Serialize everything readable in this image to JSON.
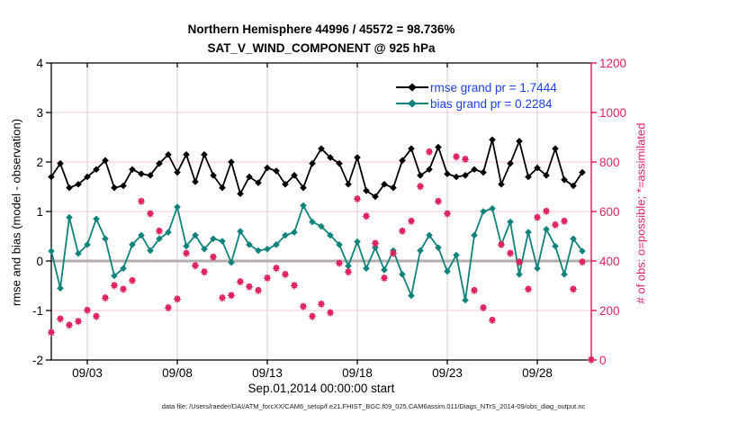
{
  "title": {
    "line1": "Northern Hemisphere 44996 / 45572 = 98.736%",
    "line2": "SAT_V_WIND_COMPONENT @ 925 hPa"
  },
  "axes": {
    "left": {
      "label": "rmse and bias (model - observation)",
      "range": [
        -2,
        4
      ],
      "ticks": [
        -2,
        -1,
        0,
        1,
        2,
        3,
        4
      ]
    },
    "right": {
      "label": "# of obs: o=possible; *=assimilated",
      "range": [
        0,
        1200
      ],
      "ticks": [
        0,
        200,
        400,
        600,
        800,
        1000,
        1200
      ]
    },
    "x": {
      "label": "Sep.01,2014 00:00:00 start",
      "range_days": [
        0,
        30
      ],
      "tick_days": [
        2,
        7,
        12,
        17,
        22,
        27
      ],
      "tick_labels": [
        "09/03",
        "09/08",
        "09/13",
        "09/18",
        "09/23",
        "09/28"
      ]
    }
  },
  "legend": [
    {
      "label": "rmse grand pr = 1.7444",
      "series": "rmse"
    },
    {
      "label": "bias grand pr = 0.2284",
      "series": "bias"
    }
  ],
  "footer": "data file: /Users/raeder/DAI/ATM_forcXX/CAM6_setup/f.e21.FHIST_BGC.f09_025.CAM6assim.011/Diags_NTrS_2014-09/obs_diag_output.nc",
  "colors": {
    "rmse": "#000000",
    "bias": "#0e837c",
    "obs": "#e0235f",
    "legend_text": "#1e40e6",
    "zero_line": "#b5adad",
    "grid_vertical": "#cccccc",
    "grid_horizontal": "#f2c9d6",
    "axis_black": "#000000"
  },
  "chart_data": {
    "type": "line",
    "title": "Northern Hemisphere 44996 / 45572 = 98.736% | SAT_V_WIND_COMPONENT @ 925 hPa",
    "xlabel": "Sep.01,2014 00:00:00 start",
    "ylabel_left": "rmse and bias (model - observation)",
    "ylabel_right": "# of obs: o=possible; *=assimilated",
    "x_unit": "days since Sep 1 2014 00:00",
    "xlim": [
      0,
      30
    ],
    "ylim_left": [
      -2,
      4
    ],
    "ylim_right": [
      0,
      1200
    ],
    "grid": true,
    "legend_position": "top-right-inside",
    "series": [
      {
        "name": "rmse",
        "axis": "left",
        "grand_pr": 1.7444,
        "marker": "diamond",
        "step_days": 0.5,
        "values": [
          1.7,
          1.97,
          1.48,
          1.55,
          1.7,
          1.85,
          2.03,
          1.48,
          1.52,
          1.85,
          1.76,
          1.73,
          1.97,
          2.15,
          1.79,
          2.15,
          1.6,
          2.15,
          1.73,
          1.48,
          2.0,
          1.36,
          1.7,
          1.58,
          1.88,
          1.82,
          1.55,
          1.73,
          1.48,
          1.97,
          2.27,
          2.09,
          1.97,
          1.55,
          2.09,
          1.42,
          1.3,
          1.55,
          1.48,
          2.03,
          2.27,
          1.73,
          1.85,
          2.3,
          1.76,
          1.7,
          1.73,
          1.85,
          1.79,
          2.45,
          1.55,
          1.97,
          2.42,
          1.7,
          1.88,
          1.73,
          2.27,
          1.64,
          1.52,
          1.79
        ]
      },
      {
        "name": "bias",
        "axis": "left",
        "grand_pr": 0.2284,
        "marker": "diamond",
        "step_days": 0.5,
        "values": [
          0.2,
          -0.55,
          0.88,
          0.15,
          0.33,
          0.85,
          0.45,
          -0.3,
          -0.15,
          0.33,
          0.52,
          0.21,
          0.45,
          0.58,
          1.09,
          0.3,
          0.52,
          0.24,
          0.45,
          0.4,
          -0.03,
          0.6,
          0.33,
          0.21,
          0.24,
          0.33,
          0.52,
          0.58,
          1.12,
          0.79,
          0.7,
          0.52,
          0.33,
          -0.1,
          0.39,
          -0.15,
          0.27,
          -0.18,
          0.21,
          -0.27,
          -0.7,
          0.21,
          0.52,
          0.27,
          -0.21,
          0.12,
          -0.79,
          0.52,
          1.0,
          1.06,
          0.33,
          0.79,
          -0.27,
          0.58,
          -0.15,
          0.64,
          0.3,
          -0.27,
          0.45,
          0.2
        ]
      },
      {
        "name": "num_obs (o=possible, *=assimilated, overlapping)",
        "axis": "right",
        "marker": "asterisk-in-circle",
        "step_days": 0.5,
        "values": [
          110,
          165,
          140,
          155,
          200,
          175,
          250,
          300,
          285,
          320,
          640,
          590,
          520,
          210,
          245,
          430,
          380,
          355,
          415,
          250,
          260,
          315,
          295,
          280,
          330,
          370,
          345,
          300,
          215,
          175,
          225,
          190,
          390,
          355,
          650,
          580,
          470,
          330,
          430,
          520,
          560,
          700,
          840,
          640,
          590,
          820,
          810,
          280,
          210,
          160,
          465,
          430,
          395,
          285,
          575,
          600,
          545,
          560,
          285,
          395,
          0
        ]
      }
    ]
  }
}
